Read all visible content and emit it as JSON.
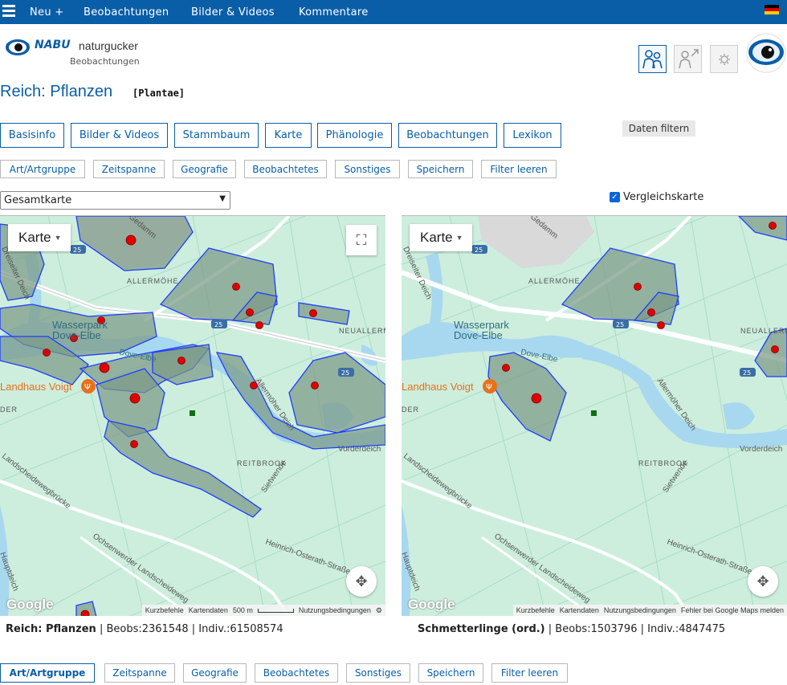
{
  "topbar": {
    "new_label": "Neu +",
    "obs_label": "Beobachtungen",
    "media_label": "Bilder & Videos",
    "comments_label": "Kommentare"
  },
  "logo": {
    "brand": "NABU",
    "brand2": "naturgucker",
    "sub": "Beobachtungen"
  },
  "page": {
    "title": "Reich: Pflanzen",
    "latin": "[Plantae]"
  },
  "tabs": [
    "Basisinfo",
    "Bilder & Videos",
    "Stammbaum",
    "Karte",
    "Phänologie",
    "Beobachtungen",
    "Lexikon"
  ],
  "daten_filtern": "Daten filtern",
  "filters_top": [
    "Art/Artgruppe",
    "Zeitspanne",
    "Geografie",
    "Beobachtetes",
    "Sonstiges",
    "Speichern",
    "Filter leeren"
  ],
  "filters_bottom": [
    "Art/Artgruppe",
    "Zeitspanne",
    "Geografie",
    "Beobachtetes",
    "Sonstiges",
    "Speichern",
    "Filter leeren"
  ],
  "map_select": "Gesamtkarte",
  "compare_label": "Vergleichskarte",
  "map": {
    "karte_label": "Karte",
    "labels": {
      "allermohe": "ALLERMÖHE",
      "wasserpark": "Wasserpark",
      "dove_elbe_park": "Dove-Elbe",
      "dove_elbe_river": "Dove-Elbe",
      "landhaus": "Landhaus Voigt",
      "neuallerm": "NEUALLERM",
      "reitbrook": "REITBROOK",
      "vorderdeich": "Vorderdeich",
      "sietwende": "Sietwende",
      "allermoher_deich": "Allermöher Deich",
      "landscheide": "Landscheidewegbrücke",
      "ochsenwerder": "Ochsenwerder Landscheideweg",
      "heinrich": "Heinrich-Osterath-Straße",
      "hauptdeich": "Hauptdeich",
      "dammweg": "Gedamm",
      "dreiseiter": "Dreiseiter Deich",
      "der": "DER",
      "route25": "25"
    },
    "google": "Google",
    "attrib_left": {
      "shortcuts": "Kurzbefehle",
      "mapdata": "Kartendaten",
      "scale": "500 m",
      "terms": "Nutzungsbedingungen"
    },
    "attrib_right": {
      "shortcuts": "Kurzbefehle",
      "mapdata": "Kartendaten",
      "terms": "Nutzungsbedingungen",
      "report": "Fehler bei Google Maps melden"
    }
  },
  "stats_left": {
    "name": "Reich: Pflanzen",
    "obs": "Beobs:2361548",
    "indiv": "Indiv.:61508574"
  },
  "stats_right": {
    "name": "Schmetterlinge (ord.)",
    "obs": "Beobs:1503796",
    "indiv": "Indiv.:4847475"
  },
  "colors": {
    "brand": "#0a5ea8",
    "map_land": "#cdeedd",
    "map_water": "#a8d8ef",
    "polygon_fill": "#7b9a86",
    "polygon_stroke": "#1e3cff",
    "marker": "#e00000"
  }
}
